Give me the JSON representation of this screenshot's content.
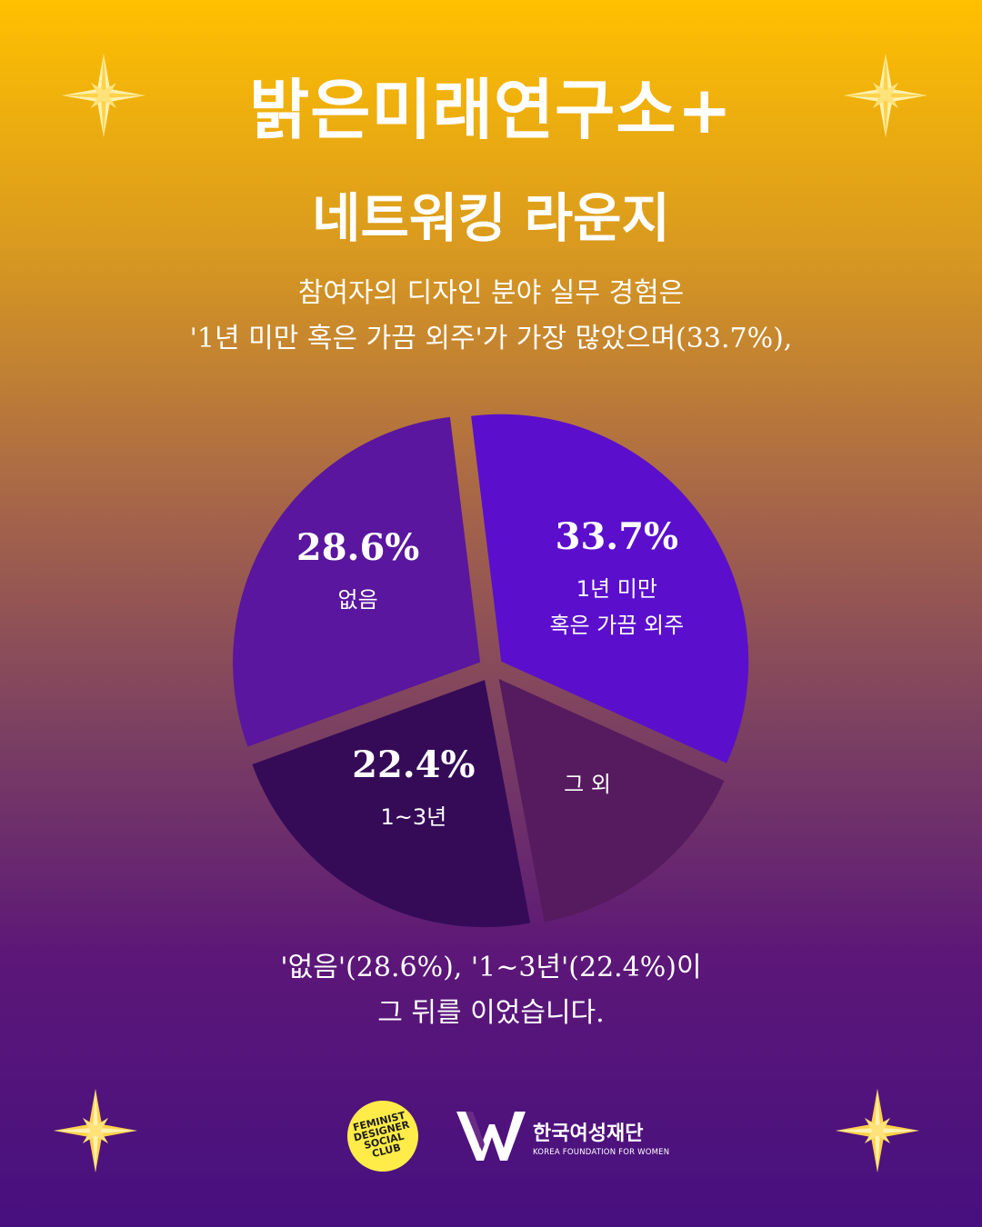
{
  "header": {
    "title": "밝은미래연구소+",
    "subtitle": "네트워킹 라운지"
  },
  "intro": {
    "line1": "참여자의 디자인 분야 실무 경험은",
    "line2": "'1년 미만 혹은 가끔 외주'가 가장 많았으며(33.7%),"
  },
  "outro": {
    "line1": "'없음'(28.6%), '1~3년'(22.4%)이",
    "line2": "그 뒤를 이었습니다."
  },
  "chart_data": {
    "type": "pie",
    "slices": [
      {
        "label_lines": [
          "1년 미만",
          "혹은 가끔 외주"
        ],
        "value": 33.7,
        "value_label": "33.7%",
        "color": "#5b0fcc"
      },
      {
        "label_lines": [
          "그 외"
        ],
        "value": 15.3,
        "value_label": "",
        "color": "#561a5f"
      },
      {
        "label_lines": [
          "1~3년"
        ],
        "value": 22.4,
        "value_label": "22.4%",
        "color": "#350b58"
      },
      {
        "label_lines": [
          "없음"
        ],
        "value": 28.6,
        "value_label": "28.6%",
        "color": "#5a169e"
      }
    ]
  },
  "footer": {
    "logo_left": [
      "FEMINIST",
      "DESIGNER",
      "SOCIAL",
      "CLUB"
    ],
    "logo_right_name": "한국여성재단",
    "logo_right_en": "KOREA FOUNDATION FOR WOMEN"
  },
  "colors": {
    "sparkle": "#ffd24a",
    "text": "#ffffff"
  }
}
